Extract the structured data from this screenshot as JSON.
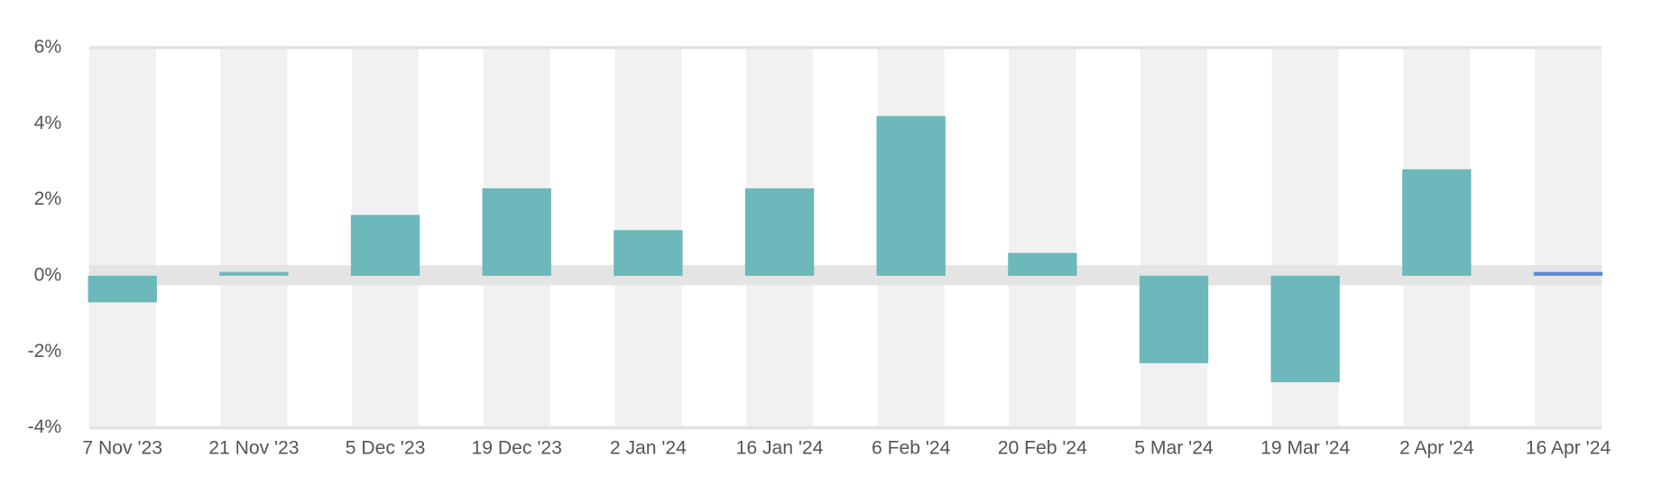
{
  "chart_data": {
    "type": "bar",
    "categories": [
      "7 Nov '23",
      "21 Nov '23",
      "5 Dec '23",
      "19 Dec '23",
      "2 Jan '24",
      "16 Jan '24",
      "6 Feb '24",
      "20 Feb '24",
      "5 Mar '24",
      "19 Mar '24",
      "2 Apr '24",
      "16 Apr '24"
    ],
    "values": [
      -0.7,
      0.1,
      1.6,
      2.3,
      1.2,
      2.3,
      4.2,
      0.6,
      -2.3,
      -2.8,
      2.8,
      0.1
    ],
    "colors": [
      "#6cb8bb",
      "#6cb8bb",
      "#6cb8bb",
      "#6cb8bb",
      "#6cb8bb",
      "#6cb8bb",
      "#6cb8bb",
      "#6cb8bb",
      "#6cb8bb",
      "#6cb8bb",
      "#6cb8bb",
      "#5b8bd0"
    ],
    "ylim": [
      -4,
      6
    ],
    "yticks": [
      {
        "value": -4,
        "label": "-4%"
      },
      {
        "value": -2,
        "label": "-2%"
      },
      {
        "value": 0,
        "label": "0%"
      },
      {
        "value": 2,
        "label": "2%"
      },
      {
        "value": 4,
        "label": "4%"
      },
      {
        "value": 6,
        "label": "6%"
      }
    ]
  }
}
